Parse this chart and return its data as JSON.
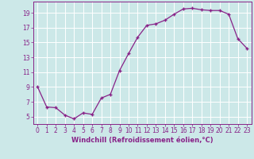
{
  "x": [
    0,
    1,
    2,
    3,
    4,
    5,
    6,
    7,
    8,
    9,
    10,
    11,
    12,
    13,
    14,
    15,
    16,
    17,
    18,
    19,
    20,
    21,
    22,
    23
  ],
  "y": [
    9.0,
    6.3,
    6.2,
    5.2,
    4.7,
    5.5,
    5.3,
    7.5,
    8.0,
    11.2,
    13.5,
    15.7,
    17.3,
    17.5,
    18.0,
    18.8,
    19.5,
    19.6,
    19.4,
    19.3,
    19.3,
    18.8,
    15.5,
    14.2
  ],
  "line_color": "#882288",
  "marker_color": "#882288",
  "bg_color": "#cce8e8",
  "grid_color": "#ffffff",
  "xlabel": "Windchill (Refroidissement éolien,°C)",
  "ylabel_ticks": [
    5,
    7,
    9,
    11,
    13,
    15,
    17,
    19
  ],
  "ylim": [
    4.0,
    20.5
  ],
  "xlim": [
    -0.5,
    23.5
  ],
  "tick_fontsize": 5.5,
  "xlabel_fontsize": 6.0
}
